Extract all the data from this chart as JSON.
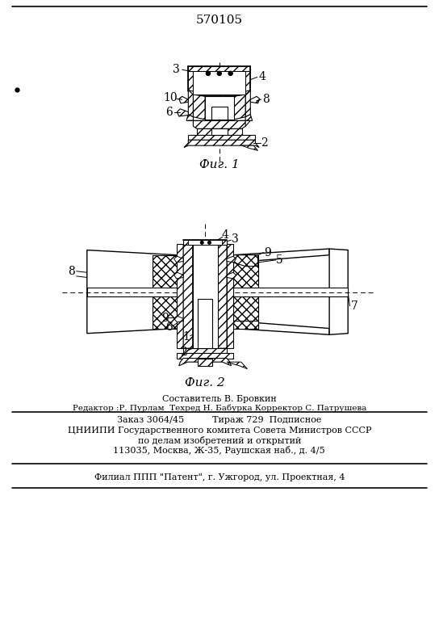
{
  "patent_number": "570105",
  "fig1_caption": "Фиг. 1",
  "fig2_caption": "Фиг. 2",
  "footer_line1": "Составитель В. Бровкин",
  "footer_line2": "Редактор :Р. Пурлам  Техред Н. Бабурка Корректор С. Патрушева",
  "footer_line3": "Заказ 3064/45          Тираж 729  Подписное",
  "footer_line4": "ЦНИИПИ Государственного комитета Совета Министров СССР",
  "footer_line5": "по делам изобретений и открытий",
  "footer_line6": "113035, Москва, Ж-35, Раушская наб., д. 4/5",
  "footer_line7": "Филиал ППП \"Патент\", г. Ужгород, ул. Проектная, 4",
  "bg_color": "#ffffff"
}
